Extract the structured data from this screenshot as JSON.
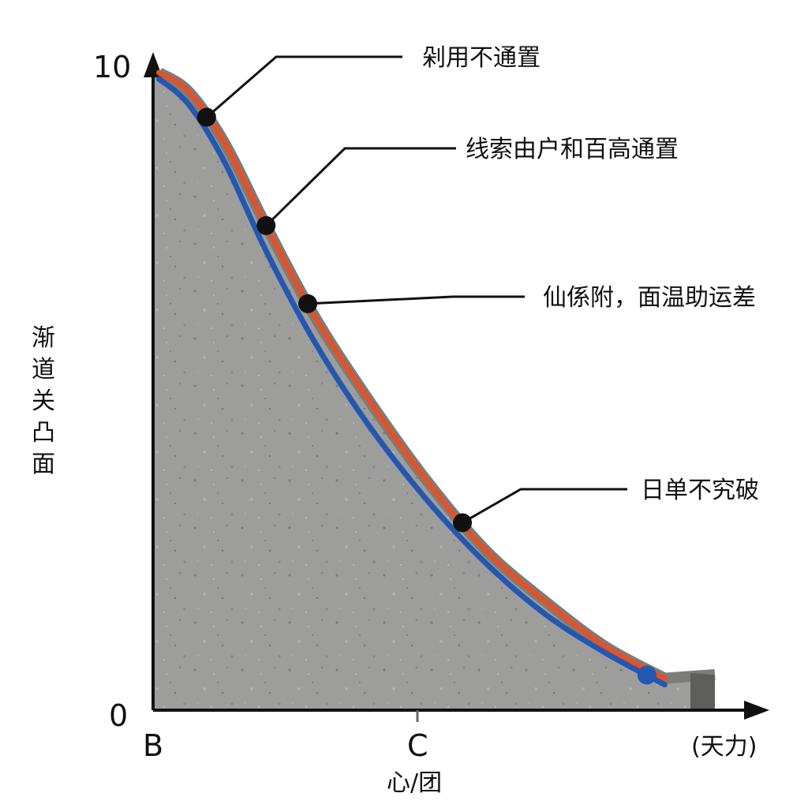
{
  "chart_data": {
    "type": "line",
    "ylabel": "渐道关凸面",
    "xlabel": "心/团",
    "x_unit_label": "(天力)",
    "y_ticks": [
      "10",
      "0"
    ],
    "x_ticks": [
      "B",
      "C"
    ],
    "ylim": [
      0,
      10
    ],
    "xlim": [
      0,
      10
    ],
    "grid": false,
    "series": [
      {
        "color": "#e0522a",
        "x": [
          0.1,
          0.6,
          1.2,
          1.9,
          2.7,
          3.6,
          4.6,
          5.6,
          6.6,
          7.6,
          8.6
        ],
        "y": [
          10.0,
          9.7,
          8.9,
          7.6,
          6.2,
          4.9,
          3.6,
          2.5,
          1.7,
          1.0,
          0.5
        ]
      },
      {
        "color": "#2457b0",
        "x": [
          0.1,
          0.6,
          1.2,
          1.9,
          2.7,
          3.6,
          4.6,
          5.6,
          6.6,
          7.6,
          8.6
        ],
        "y": [
          9.9,
          9.5,
          8.6,
          7.2,
          5.8,
          4.5,
          3.3,
          2.3,
          1.5,
          0.9,
          0.4
        ]
      }
    ],
    "annotations": [
      {
        "text": "剁用不通置",
        "point": [
          0.9,
          9.4
        ],
        "marker": true
      },
      {
        "text": "线索由户和百高通置",
        "point": [
          1.9,
          8.0
        ],
        "marker": true
      },
      {
        "text": "仙係附，面温助运差",
        "point": [
          2.6,
          6.5
        ],
        "marker": false
      },
      {
        "text": "日单不究破",
        "point": [
          5.2,
          2.8
        ],
        "marker": true
      }
    ],
    "points": [
      {
        "x": 2.6,
        "y": 6.5,
        "color": "#111111"
      },
      {
        "x": 8.3,
        "y": 0.45,
        "color": "#2457b0"
      }
    ]
  }
}
